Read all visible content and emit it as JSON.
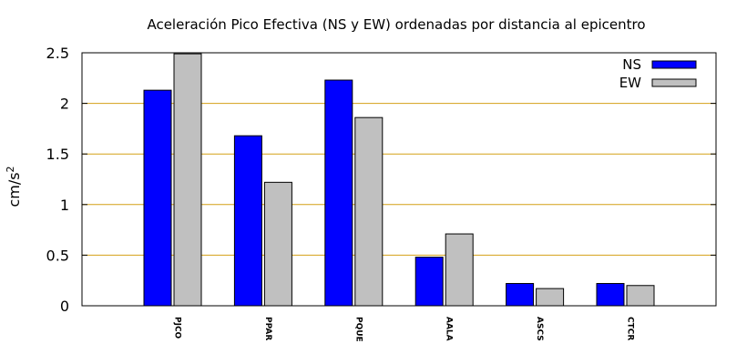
{
  "chart_data": {
    "type": "bar",
    "title": "Aceleración Pico Efectiva (NS y EW) ordenadas por distancia al epicentro",
    "xlabel": "",
    "ylabel": "cm/s",
    "ylabel_sup": "2",
    "ylim": [
      0,
      2.5
    ],
    "yticks": [
      0,
      0.5,
      1,
      1.5,
      2,
      2.5
    ],
    "ytick_labels": [
      "0",
      "0.5",
      "1",
      "1.5",
      "2",
      "2.5"
    ],
    "grid": "horizontal",
    "grid_color": "#d4a017",
    "legend_position": "top-right",
    "categories": [
      "PJCO",
      "PPAR",
      "PQUE",
      "AALA",
      "ASCS",
      "CTCR"
    ],
    "series": [
      {
        "name": "NS",
        "color": "#0000ff",
        "values": [
          2.13,
          1.68,
          2.23,
          0.48,
          0.22,
          0.22
        ]
      },
      {
        "name": "EW",
        "color": "#c0c0c0",
        "values": [
          2.49,
          1.22,
          1.86,
          0.71,
          0.17,
          0.2
        ]
      }
    ]
  }
}
